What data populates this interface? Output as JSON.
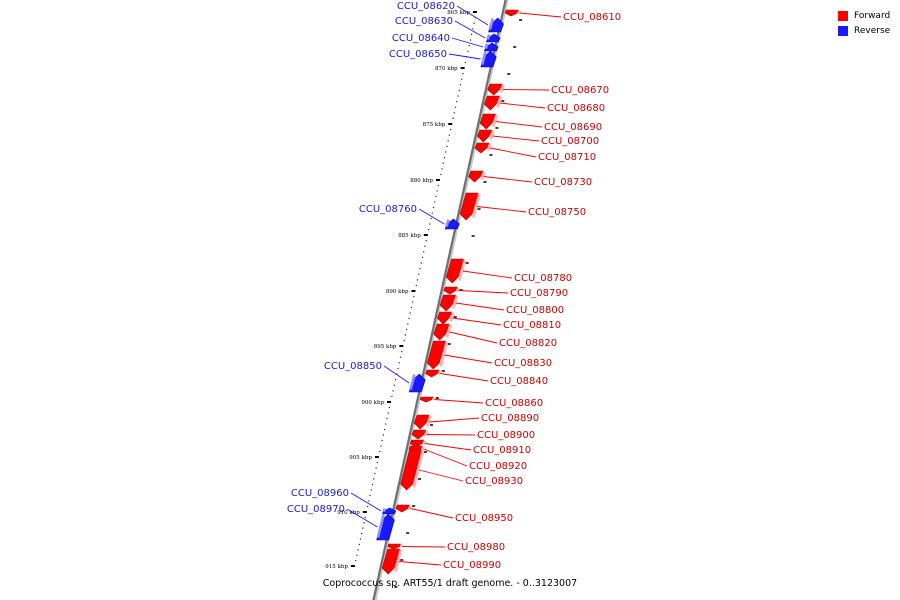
{
  "legend": {
    "forward_label": "Forward",
    "reverse_label": "Reverse",
    "forward_color": "#ff0000",
    "reverse_color": "#1a1aff"
  },
  "caption": "Coprococcus sp. ART55/1 draft genome. - 0..3123007",
  "scale": {
    "ticks_kbp": [
      865,
      870,
      875,
      880,
      885,
      890,
      895,
      900,
      905,
      910,
      915
    ],
    "tick_labels": [
      "865 kbp",
      "870 kbp",
      "875 kbp",
      "880 kbp",
      "885 kbp",
      "890 kbp",
      "895 kbp",
      "900 kbp",
      "905 kbp",
      "910 kbp",
      "915 kbp"
    ]
  },
  "genes": [
    {
      "name": "CCU_08610",
      "strand": "forward"
    },
    {
      "name": "CCU_08620",
      "strand": "reverse"
    },
    {
      "name": "CCU_08630",
      "strand": "reverse"
    },
    {
      "name": "CCU_08640",
      "strand": "reverse"
    },
    {
      "name": "CCU_08650",
      "strand": "reverse"
    },
    {
      "name": "CCU_08670",
      "strand": "forward"
    },
    {
      "name": "CCU_08680",
      "strand": "forward"
    },
    {
      "name": "CCU_08690",
      "strand": "forward"
    },
    {
      "name": "CCU_08700",
      "strand": "forward"
    },
    {
      "name": "CCU_08710",
      "strand": "forward"
    },
    {
      "name": "CCU_08730",
      "strand": "forward"
    },
    {
      "name": "CCU_08750",
      "strand": "forward"
    },
    {
      "name": "CCU_08760",
      "strand": "reverse"
    },
    {
      "name": "CCU_08780",
      "strand": "forward"
    },
    {
      "name": "CCU_08790",
      "strand": "forward"
    },
    {
      "name": "CCU_08800",
      "strand": "forward"
    },
    {
      "name": "CCU_08810",
      "strand": "forward"
    },
    {
      "name": "CCU_08820",
      "strand": "forward"
    },
    {
      "name": "CCU_08830",
      "strand": "forward"
    },
    {
      "name": "CCU_08840",
      "strand": "forward"
    },
    {
      "name": "CCU_08850",
      "strand": "reverse"
    },
    {
      "name": "CCU_08860",
      "strand": "forward"
    },
    {
      "name": "CCU_08890",
      "strand": "forward"
    },
    {
      "name": "CCU_08900",
      "strand": "forward"
    },
    {
      "name": "CCU_08910",
      "strand": "forward"
    },
    {
      "name": "CCU_08920",
      "strand": "forward"
    },
    {
      "name": "CCU_08930",
      "strand": "forward"
    },
    {
      "name": "CCU_08950",
      "strand": "forward"
    },
    {
      "name": "CCU_08960",
      "strand": "reverse"
    },
    {
      "name": "CCU_08970",
      "strand": "reverse"
    },
    {
      "name": "CCU_08980",
      "strand": "forward"
    },
    {
      "name": "CCU_08990",
      "strand": "forward"
    }
  ]
}
